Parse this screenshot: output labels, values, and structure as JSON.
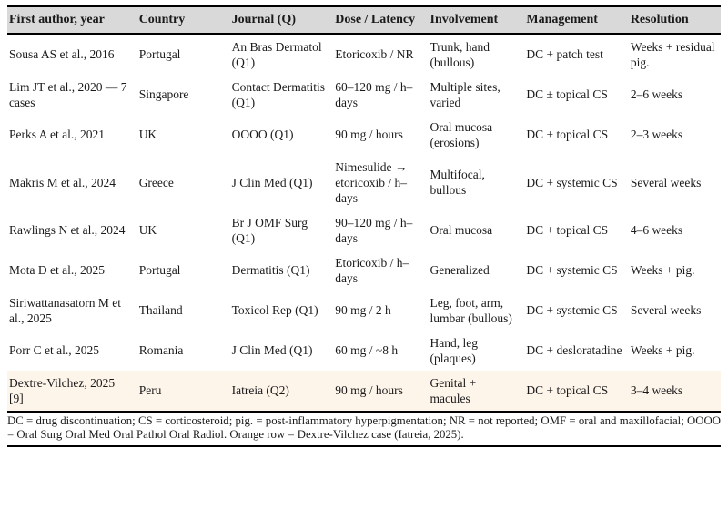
{
  "table": {
    "columns": [
      "First author, year",
      "Country",
      "Journal (Q)",
      "Dose / Latency",
      "Involvement",
      "Management",
      "Resolution"
    ],
    "rows": [
      [
        "Sousa AS et al., 2016",
        "Portugal",
        "An Bras Dermatol (Q1)",
        "Etoricoxib / NR",
        "Trunk, hand (bullous)",
        "DC + patch test",
        "Weeks + residual pig."
      ],
      [
        "Lim JT et al., 2020 — 7 cases",
        "Singapore",
        "Contact Dermatitis (Q1)",
        "60–120 mg / h–days",
        "Multiple sites, varied",
        "DC ± topical CS",
        "2–6 weeks"
      ],
      [
        "Perks A et al., 2021",
        "UK",
        "OOOO (Q1)",
        "90 mg / hours",
        "Oral mucosa (erosions)",
        "DC + topical CS",
        "2–3 weeks"
      ],
      [
        "Makris M et al., 2024",
        "Greece",
        "J Clin Med (Q1)",
        "Nimesulide → etoricoxib / h–days",
        "Multifocal, bullous",
        "DC + systemic CS",
        "Several weeks"
      ],
      [
        "Rawlings N et al., 2024",
        "UK",
        "Br J OMF Surg (Q1)",
        "90–120 mg / h–days",
        "Oral mucosa",
        "DC + topical CS",
        "4–6 weeks"
      ],
      [
        "Mota D et al., 2025",
        "Portugal",
        "Dermatitis (Q1)",
        "Etoricoxib / h–days",
        "Generalized",
        "DC + systemic CS",
        "Weeks + pig."
      ],
      [
        "Siriwattanasatorn M et al., 2025",
        "Thailand",
        "Toxicol Rep (Q1)",
        "90 mg / 2 h",
        "Leg, foot, arm, lumbar (bullous)",
        "DC + systemic CS",
        "Several weeks"
      ],
      [
        "Porr C et al., 2025",
        "Romania",
        "J Clin Med (Q1)",
        "60 mg / ~8 h",
        "Hand, leg (plaques)",
        "DC + desloratadine",
        "Weeks + pig."
      ],
      [
        "Dextre-Vilchez, 2025 [9]",
        "Peru",
        "Iatreia (Q2)",
        "90 mg / hours",
        "Genital + macules",
        "DC + topical CS",
        "3–4 weeks"
      ]
    ],
    "highlighted_row_index": 8
  },
  "footnote": {
    "text": "DC = drug discontinuation; CS = corticosteroid; pig. = post-inflammatory hyperpigmentation; NR = not reported; OMF = oral and maxillofacial; OOOO = Oral Surg Oral Med Oral Pathol Oral Radiol. Orange row = Dextre-Vilchez case (Iatreia, 2025)."
  },
  "colors": {
    "header_background": "#d9d9d9",
    "border": "#000000",
    "text": "#1a1a1a",
    "highlight_row": "#fdf4ea"
  }
}
